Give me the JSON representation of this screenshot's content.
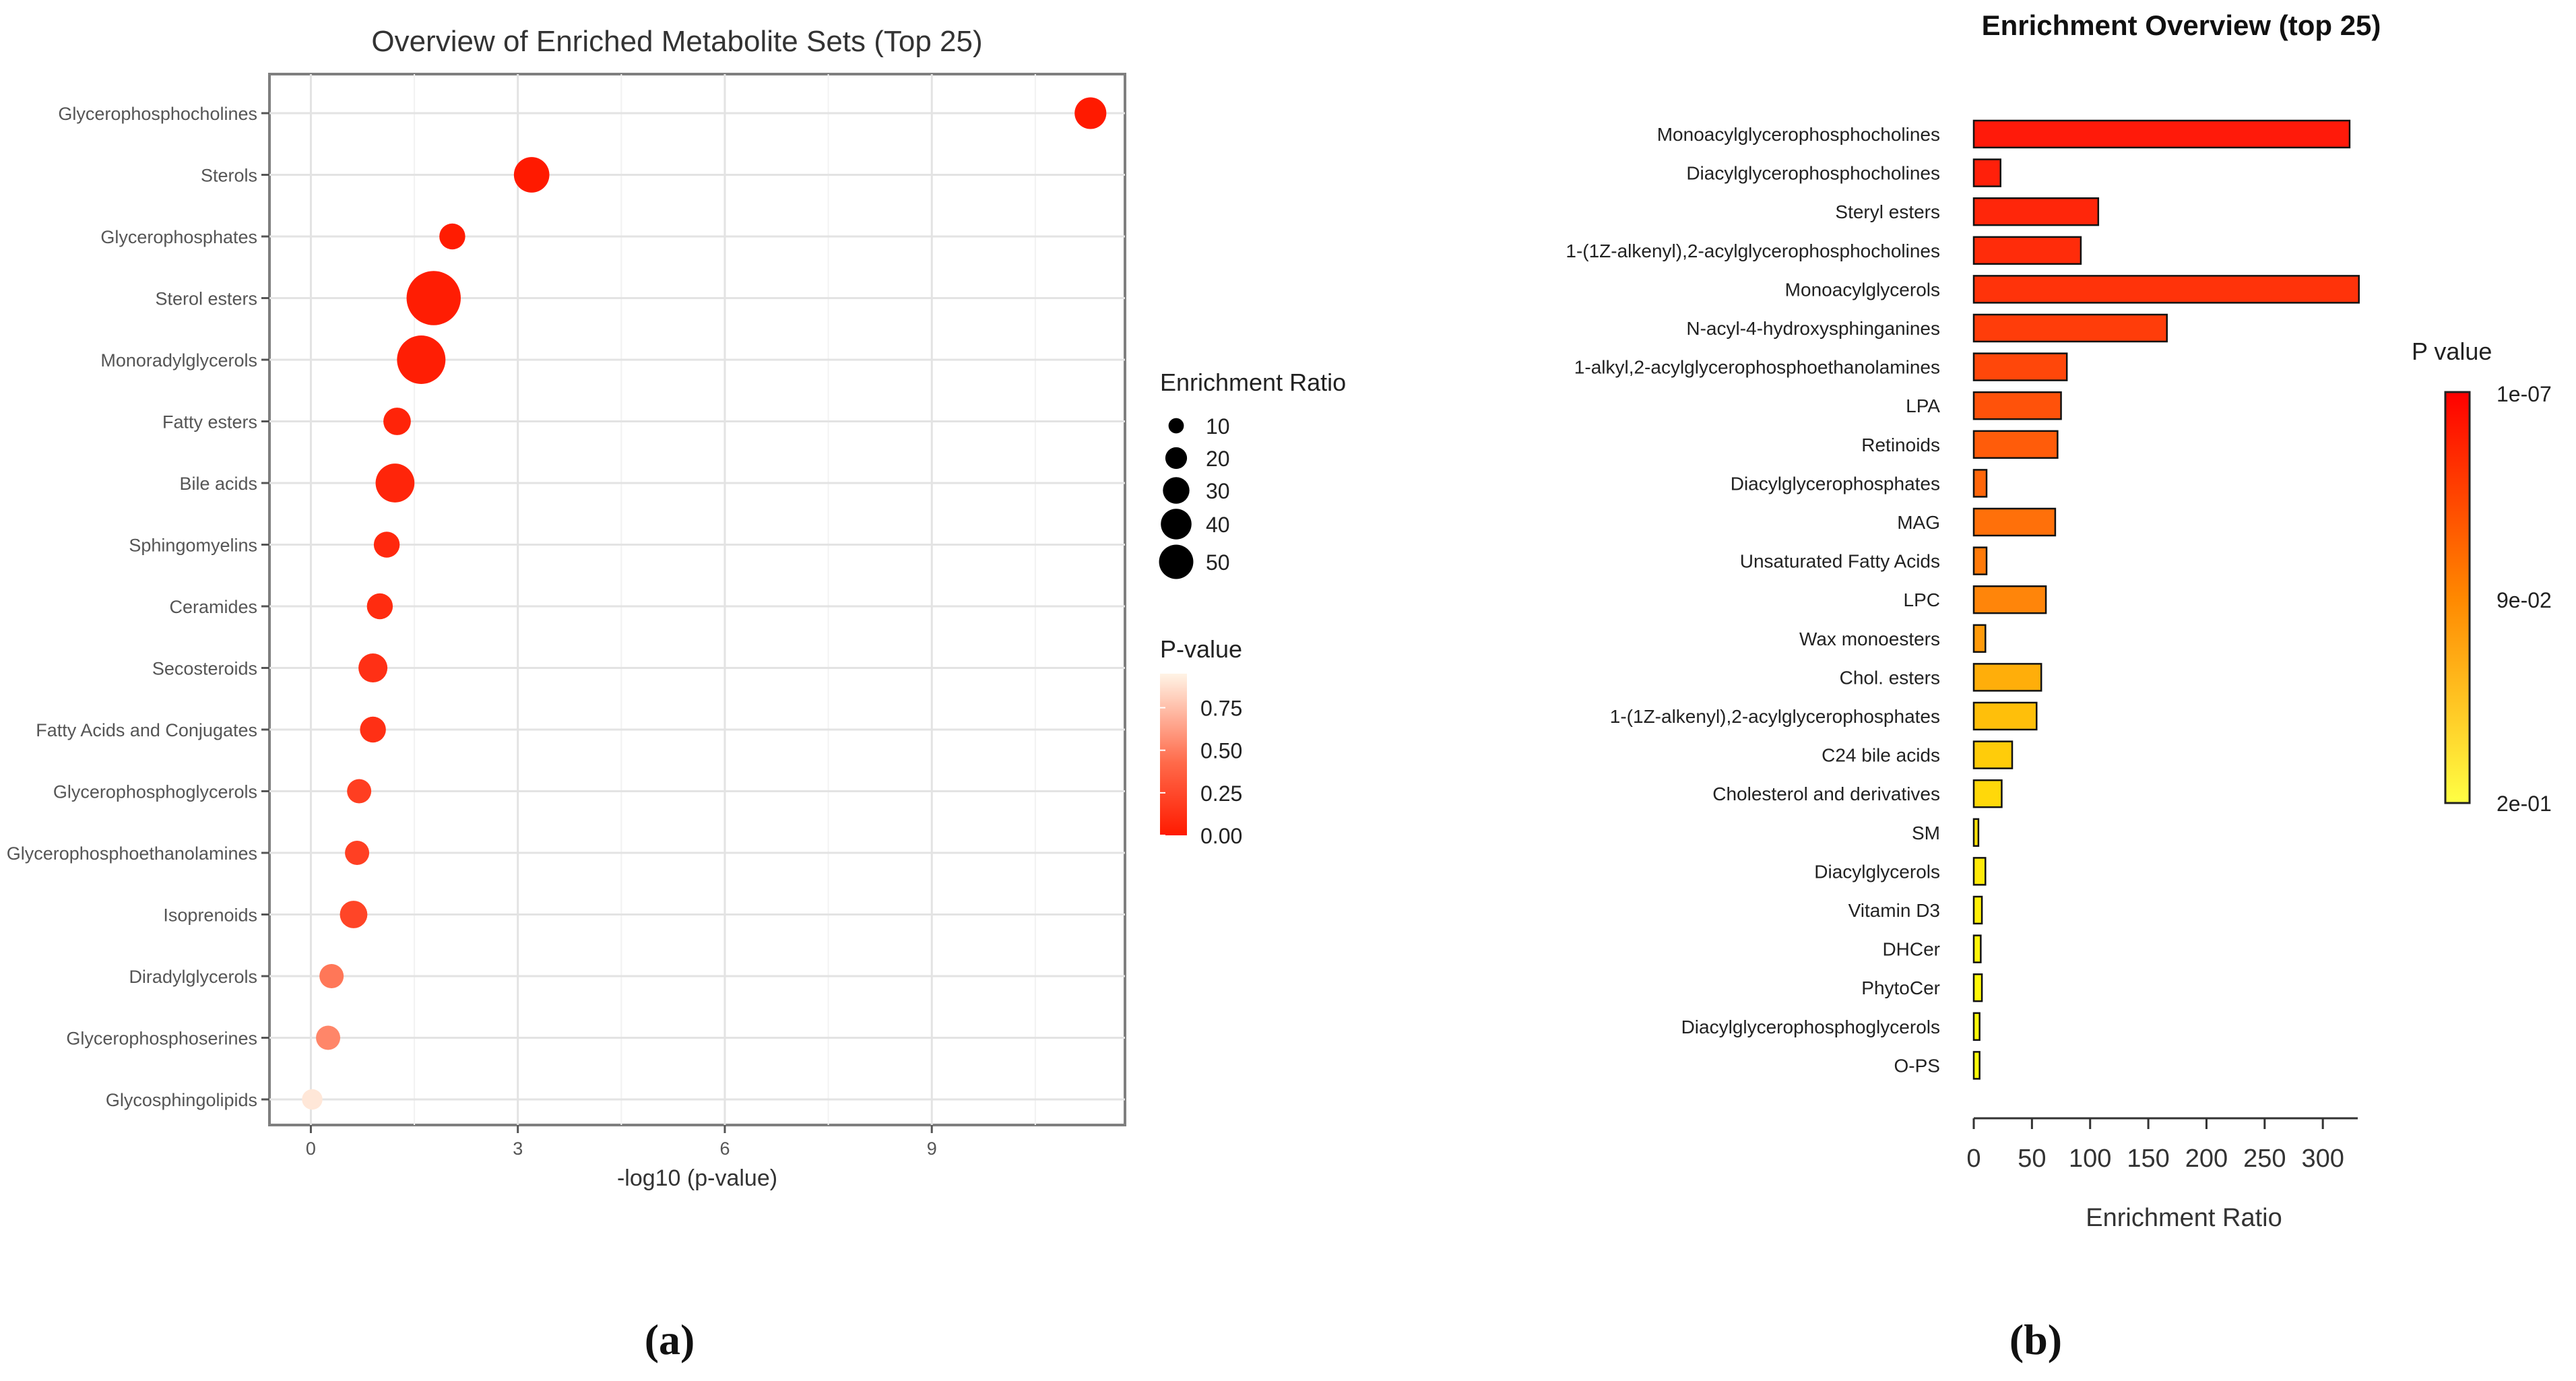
{
  "panel_labels": {
    "a": "(a)",
    "b": "(b)"
  },
  "chart_data": [
    {
      "type": "scatter",
      "title": "Overview of Enriched Metabolite Sets (Top 25)",
      "xlabel": "-log10 (p-value)",
      "ylabel": "",
      "xlim": [
        -0.6,
        11.8
      ],
      "xticks": [
        0,
        3,
        6,
        9
      ],
      "xtick_labels": [
        "0",
        "3",
        "6",
        "9"
      ],
      "grid": true,
      "categories": [
        "Glycerophosphocholines",
        "Sterols",
        "Glycerophosphates",
        "Sterol esters",
        "Monoradylglycerols",
        "Fatty esters",
        "Bile acids",
        "Sphingomyelins",
        "Ceramides",
        "Secosteroids",
        "Fatty Acids and Conjugates",
        "Glycerophosphoglycerols",
        "Glycerophosphoethanolamines",
        "Isoprenoids",
        "Diradylglycerols",
        "Glycerophosphoserines",
        "Glycosphingolipids"
      ],
      "x": [
        11.3,
        3.2,
        2.05,
        1.78,
        1.6,
        1.25,
        1.22,
        1.1,
        1.0,
        0.9,
        0.9,
        0.7,
        0.67,
        0.62,
        0.3,
        0.25,
        0.02
      ],
      "enrichment_ratio": [
        12,
        15,
        8,
        35,
        28,
        9,
        18,
        8,
        8,
        10,
        8,
        7,
        7,
        9,
        7,
        7,
        5
      ],
      "p_value": [
        0.0,
        0.001,
        0.009,
        0.017,
        0.025,
        0.056,
        0.06,
        0.079,
        0.1,
        0.126,
        0.126,
        0.2,
        0.214,
        0.24,
        0.5,
        0.56,
        0.95
      ],
      "size_legend": {
        "title": "Enrichment Ratio",
        "values": [
          10,
          20,
          30,
          40,
          50
        ],
        "labels": [
          "10",
          "20",
          "30",
          "40",
          "50"
        ]
      },
      "color_legend": {
        "title": "P-value",
        "ticks": [
          0.75,
          0.5,
          0.25,
          0.0
        ],
        "labels": [
          "0.75",
          "0.50",
          "0.25",
          "0.00"
        ],
        "color_low": "#ff1a00",
        "color_high": "#fff4e6"
      }
    },
    {
      "type": "bar",
      "orientation": "horizontal",
      "title": "Enrichment Overview (top 25)",
      "xlabel": "Enrichment Ratio",
      "ylabel": "",
      "xlim": [
        0,
        330
      ],
      "xticks": [
        0,
        50,
        100,
        150,
        200,
        250,
        300
      ],
      "xtick_labels": [
        "0",
        "50",
        "100",
        "150",
        "200",
        "250",
        "300"
      ],
      "categories": [
        "Monoacylglycerophosphocholines",
        "Diacylglycerophosphocholines",
        "Steryl esters",
        "1-(1Z-alkenyl),2-acylglycerophosphocholines",
        "Monoacylglycerols",
        "N-acyl-4-hydroxysphinganines",
        "1-alkyl,2-acylglycerophosphoethanolamines",
        "LPA",
        "Retinoids",
        "Diacylglycerophosphates",
        "MAG",
        "Unsaturated Fatty Acids",
        "LPC",
        "Wax monoesters",
        "Chol. esters",
        "1-(1Z-alkenyl),2-acylglycerophosphates",
        "C24 bile acids",
        "Cholesterol and derivatives",
        "SM",
        "Diacylglycerols",
        "Vitamin D3",
        "DHCer",
        "PhytoCer",
        "Diacylglycerophosphoglycerols",
        "O-PS"
      ],
      "values": [
        323,
        23,
        107,
        92,
        331,
        166,
        80,
        75,
        72,
        11,
        70,
        11,
        62,
        10,
        58,
        54,
        33,
        24,
        4,
        10,
        7,
        6,
        7,
        5,
        5
      ],
      "bar_colors": [
        "#ff1a0a",
        "#ff200a",
        "#ff260a",
        "#ff2c0a",
        "#ff330a",
        "#ff3d0a",
        "#ff470a",
        "#ff520a",
        "#ff5c0a",
        "#ff660a",
        "#ff700a",
        "#ff7a0a",
        "#ff850a",
        "#ff9a0a",
        "#ffae0a",
        "#ffbf0a",
        "#ffcc0a",
        "#ffd80a",
        "#ffe20a",
        "#ffea0a",
        "#fff00a",
        "#fff50a",
        "#fff80a",
        "#fffb0a",
        "#ffff0a"
      ],
      "color_legend": {
        "title": "P value",
        "labels": [
          "1e-07",
          "9e-02",
          "2e-01"
        ],
        "color_top": "#ff0000",
        "color_mid": "#ff8800",
        "color_bottom": "#ffff44"
      }
    }
  ]
}
